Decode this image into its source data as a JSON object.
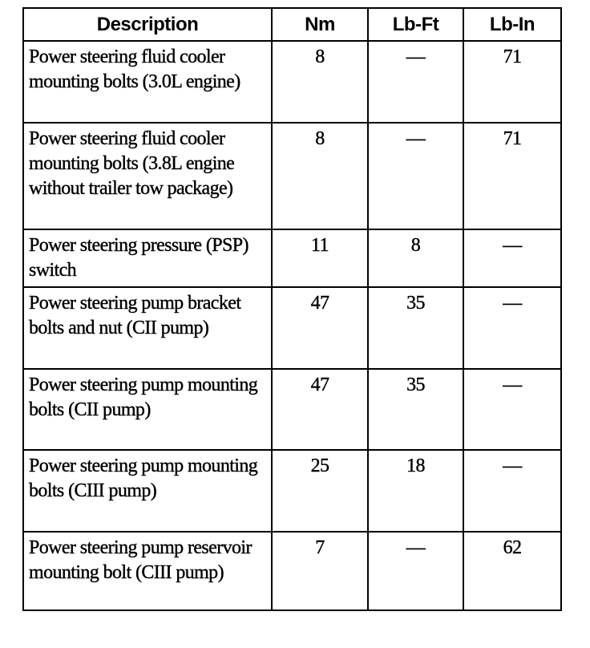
{
  "table": {
    "headers": [
      "Description",
      "Nm",
      "Lb-Ft",
      "Lb-In"
    ],
    "rows": [
      {
        "description": "Power steering fluid cooler mounting bolts (3.0L engine)",
        "nm": "8",
        "lbft": "—",
        "lbin": "71"
      },
      {
        "description": "Power steering fluid cooler mounting bolts (3.8L engine without trailer tow package)",
        "nm": "8",
        "lbft": "—",
        "lbin": "71"
      },
      {
        "description": "Power steering pressure (PSP) switch",
        "nm": "11",
        "lbft": "8",
        "lbin": "—"
      },
      {
        "description": "Power steering pump bracket bolts and nut (CII pump)",
        "nm": "47",
        "lbft": "35",
        "lbin": "—"
      },
      {
        "description": "Power steering pump mounting bolts (CII pump)",
        "nm": "47",
        "lbft": "35",
        "lbin": "—"
      },
      {
        "description": "Power steering pump mounting bolts (CIII pump)",
        "nm": "25",
        "lbft": "18",
        "lbin": "—"
      },
      {
        "description": "Power steering pump reservoir mounting bolt (CIII pump)",
        "nm": "7",
        "lbft": "—",
        "lbin": "62"
      }
    ]
  }
}
